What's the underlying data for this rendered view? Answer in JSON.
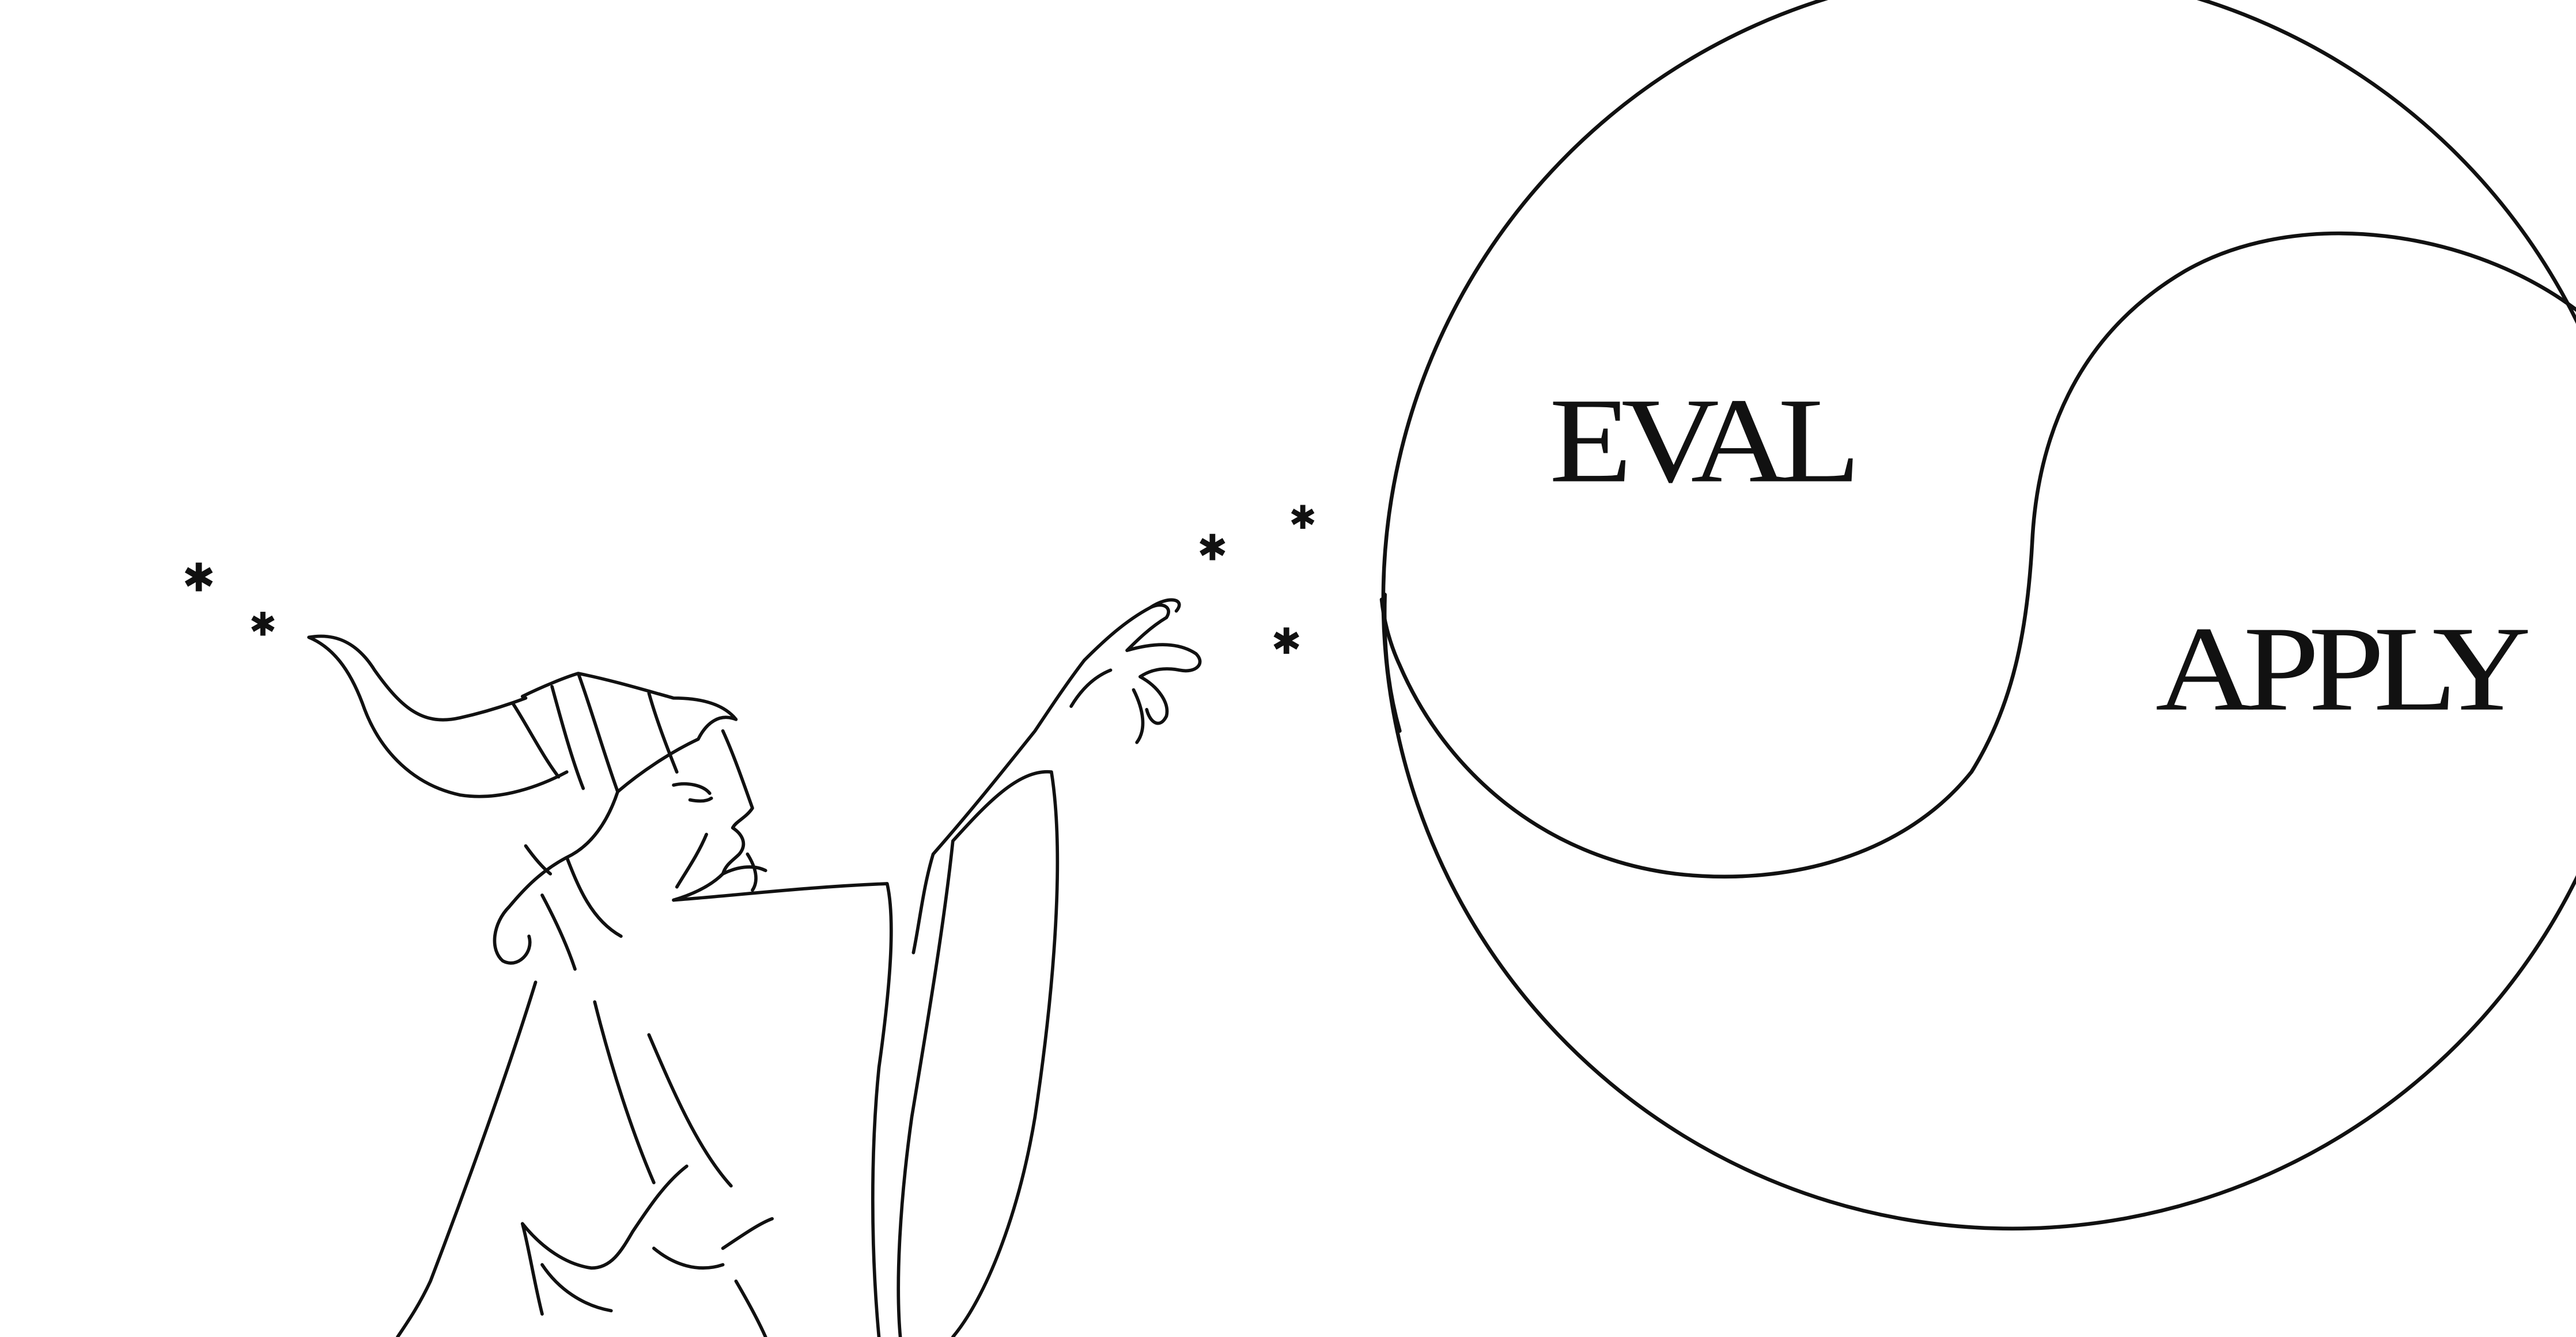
{
  "illustration": {
    "line_color": "#111111",
    "background_color": "#ffffff",
    "subject": "wizard-casting-sparkles",
    "sparkle_glyph": "✱"
  },
  "diagram": {
    "type": "yin-yang",
    "labels": {
      "upper": "EVAL",
      "lower": "APPLY"
    }
  }
}
